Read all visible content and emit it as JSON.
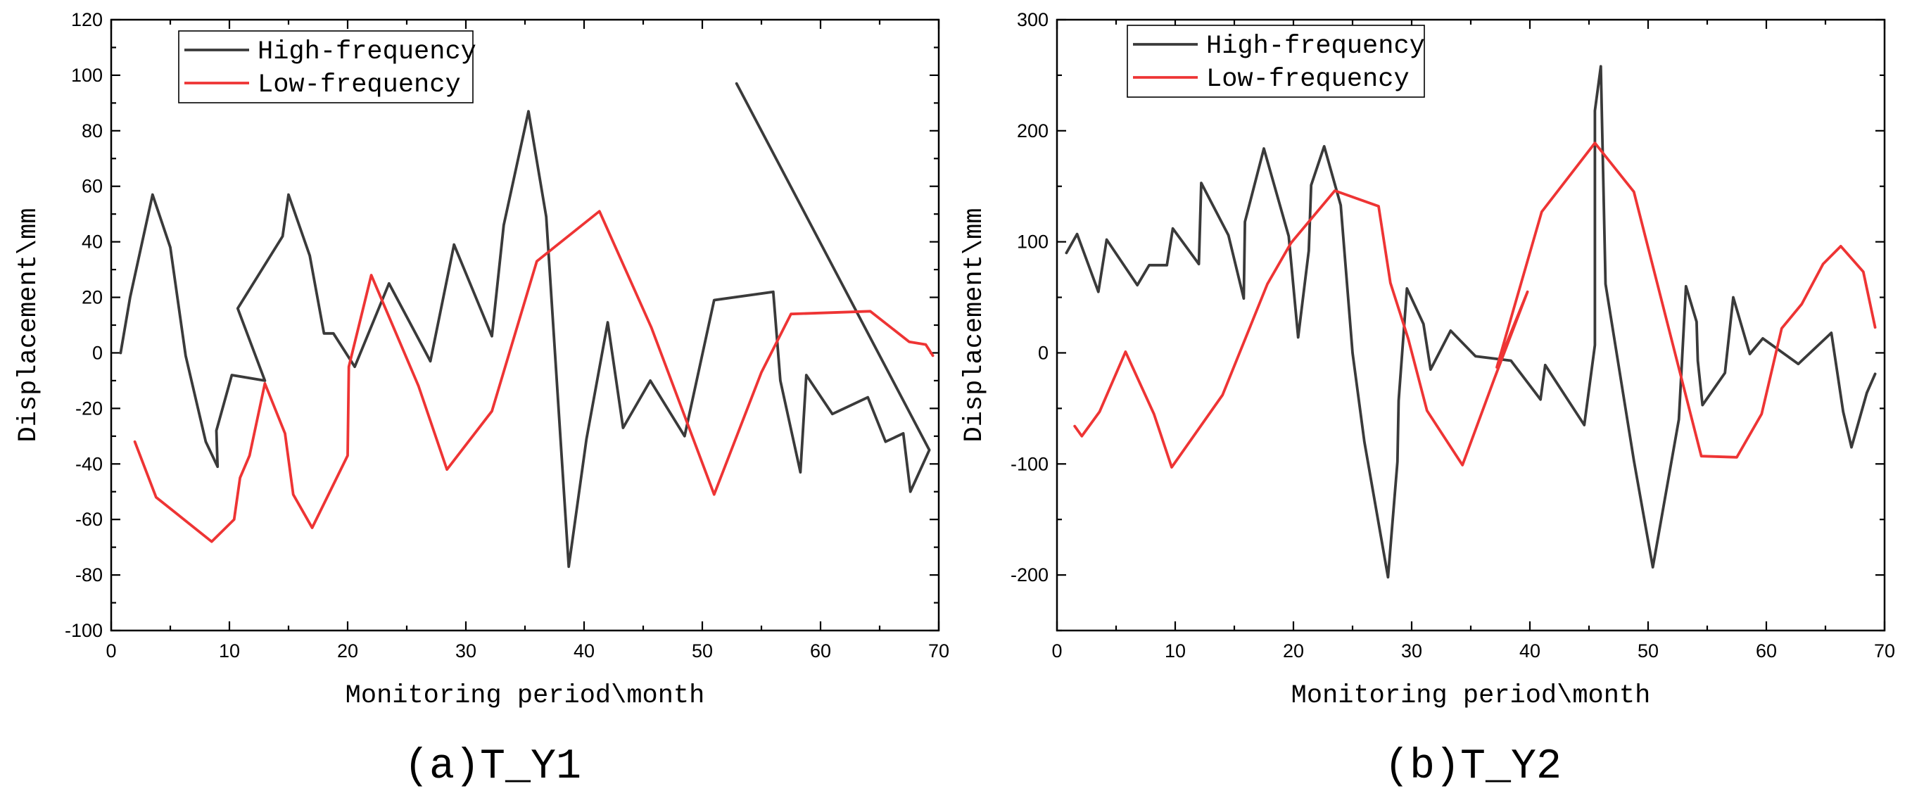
{
  "chart_data": [
    {
      "type": "line",
      "panel_id": "a",
      "caption": "(a)T_Y1",
      "xlabel": "Monitoring period\\month",
      "ylabel": "Displacement\\mm",
      "xlim": [
        0,
        70
      ],
      "ylim": [
        -100,
        120
      ],
      "x_ticks": [
        0,
        10,
        20,
        30,
        40,
        50,
        60,
        70
      ],
      "x_tick_labels": [
        "0",
        "10",
        "20",
        "30",
        "40",
        "50",
        "60",
        "70"
      ],
      "y_ticks": [
        -100,
        -80,
        -60,
        -40,
        -20,
        0,
        20,
        40,
        60,
        80,
        100,
        120
      ],
      "y_tick_labels": [
        "-100",
        "-80",
        "-60",
        "-40",
        "-20",
        "0",
        "20",
        "40",
        "60",
        "80",
        "100",
        "120"
      ],
      "legend_position": "top-left",
      "series": [
        {
          "name": "High-frequency",
          "color": "#3a3a3a",
          "points": [
            [
              0.8,
              0
            ],
            [
              1.6,
              20
            ],
            [
              3.5,
              57
            ],
            [
              5,
              38
            ],
            [
              6.3,
              -1
            ],
            [
              8,
              -32
            ],
            [
              9,
              -41
            ],
            [
              8.9,
              -28
            ],
            [
              10.2,
              -8
            ],
            [
              13,
              -10
            ],
            [
              10.7,
              16
            ],
            [
              14.5,
              42
            ],
            [
              15,
              57
            ],
            [
              16.8,
              35
            ],
            [
              18,
              7
            ],
            [
              18.8,
              7
            ],
            [
              20.6,
              -5
            ],
            [
              23.5,
              25
            ],
            [
              27,
              -3
            ],
            [
              29,
              39
            ],
            [
              32.2,
              6
            ],
            [
              33.2,
              46
            ],
            [
              35.3,
              87
            ],
            [
              36.8,
              49
            ],
            [
              38.7,
              -77
            ],
            [
              40.2,
              -31
            ],
            [
              42,
              11
            ],
            [
              43.3,
              -27
            ],
            [
              45.6,
              -10
            ],
            [
              48.5,
              -30
            ],
            [
              51,
              19
            ],
            [
              56,
              22
            ],
            [
              56.6,
              -10
            ],
            [
              58.3,
              -43
            ],
            [
              58.8,
              -8
            ],
            [
              61,
              -22
            ],
            [
              64,
              -16
            ],
            [
              65.5,
              -32
            ],
            [
              67,
              -29
            ],
            [
              67.6,
              -50
            ],
            [
              69.2,
              -35
            ],
            [
              52.9,
              97
            ]
          ]
        },
        {
          "name": "Low-frequency",
          "color": "#ee3434",
          "points": [
            [
              2,
              -32
            ],
            [
              3.8,
              -52
            ],
            [
              8.5,
              -68
            ],
            [
              10.4,
              -60
            ],
            [
              10.9,
              -45
            ],
            [
              11.7,
              -37
            ],
            [
              13,
              -11
            ],
            [
              14.7,
              -29
            ],
            [
              15.4,
              -51
            ],
            [
              17,
              -63
            ],
            [
              20,
              -37
            ],
            [
              20.1,
              -5
            ],
            [
              22,
              28
            ],
            [
              26,
              -12
            ],
            [
              28.4,
              -42
            ],
            [
              32.2,
              -21
            ],
            [
              36,
              33
            ],
            [
              41.3,
              51
            ],
            [
              45.7,
              9
            ],
            [
              51,
              -51
            ],
            [
              55,
              -7
            ],
            [
              57.5,
              14
            ],
            [
              64.2,
              15
            ],
            [
              67.5,
              4
            ],
            [
              68.9,
              3
            ],
            [
              69.5,
              -1
            ]
          ]
        }
      ]
    },
    {
      "type": "line",
      "panel_id": "b",
      "caption": "(b)T_Y2",
      "xlabel": "Monitoring period\\month",
      "ylabel": "Displacement\\mm",
      "xlim": [
        0,
        70
      ],
      "ylim": [
        -250,
        300
      ],
      "x_ticks": [
        0,
        10,
        20,
        30,
        40,
        50,
        60,
        70
      ],
      "x_tick_labels": [
        "0",
        "10",
        "20",
        "30",
        "40",
        "50",
        "60",
        "70"
      ],
      "y_ticks": [
        -200,
        -100,
        0,
        100,
        200,
        300
      ],
      "y_tick_labels": [
        "-200",
        "-100",
        "0",
        "100",
        "200",
        "300"
      ],
      "y_minor_ticks": [
        -250,
        -150,
        -50,
        50,
        150,
        250
      ],
      "legend_position": "top-left",
      "series": [
        {
          "name": "High-frequency",
          "color": "#3a3a3a",
          "points": [
            [
              0.8,
              90
            ],
            [
              1.7,
              107
            ],
            [
              3.5,
              55
            ],
            [
              4.2,
              102
            ],
            [
              6.8,
              61
            ],
            [
              7.8,
              79
            ],
            [
              9.3,
              79
            ],
            [
              9.8,
              112
            ],
            [
              12,
              80
            ],
            [
              12.2,
              153
            ],
            [
              14.5,
              106
            ],
            [
              15.8,
              49
            ],
            [
              15.9,
              118
            ],
            [
              17.5,
              184
            ],
            [
              19.6,
              105
            ],
            [
              20.4,
              14
            ],
            [
              21.3,
              92
            ],
            [
              21.5,
              151
            ],
            [
              22.6,
              186
            ],
            [
              24,
              133
            ],
            [
              25,
              0
            ],
            [
              26,
              -80
            ],
            [
              28,
              -202
            ],
            [
              28.8,
              -98
            ],
            [
              28.9,
              -43
            ],
            [
              29.6,
              58
            ],
            [
              31,
              26
            ],
            [
              31.6,
              -15
            ],
            [
              33.3,
              20
            ],
            [
              35.4,
              -3
            ],
            [
              38.4,
              -7
            ],
            [
              40.9,
              -42
            ],
            [
              41.3,
              -11
            ],
            [
              44.6,
              -65
            ],
            [
              45.5,
              7
            ],
            [
              45.5,
              218
            ],
            [
              46,
              258
            ],
            [
              46.4,
              62
            ],
            [
              48.8,
              -97
            ],
            [
              50.4,
              -193
            ],
            [
              52.6,
              -60
            ],
            [
              53.2,
              60
            ],
            [
              54.1,
              28
            ],
            [
              54.2,
              -7
            ],
            [
              54.6,
              -47
            ],
            [
              56.5,
              -18
            ],
            [
              57.2,
              50
            ],
            [
              58.6,
              -1
            ],
            [
              59.7,
              13
            ],
            [
              62.7,
              -10
            ],
            [
              65.5,
              18
            ],
            [
              66.5,
              -53
            ],
            [
              67.2,
              -85
            ],
            [
              68.5,
              -36
            ],
            [
              69.2,
              -19
            ]
          ]
        },
        {
          "name": "Low-frequency",
          "color": "#ee3434",
          "points": [
            [
              1.5,
              -66
            ],
            [
              2.1,
              -75
            ],
            [
              3.6,
              -53
            ],
            [
              5.8,
              1
            ],
            [
              8.2,
              -55
            ],
            [
              9.7,
              -103
            ],
            [
              14,
              -38
            ],
            [
              17.8,
              62
            ],
            [
              19.8,
              99
            ],
            [
              23.5,
              146
            ],
            [
              27.2,
              132
            ],
            [
              28.2,
              63
            ],
            [
              29.7,
              13
            ],
            [
              31.3,
              -52
            ],
            [
              34.3,
              -101
            ],
            [
              37,
              -23
            ],
            [
              39.8,
              55
            ],
            [
              37.2,
              -13
            ],
            [
              41,
              127
            ],
            [
              45.5,
              189
            ],
            [
              48.8,
              145
            ],
            [
              54.5,
              -93
            ],
            [
              57.5,
              -94
            ],
            [
              59.6,
              -55
            ],
            [
              61.3,
              22
            ],
            [
              63,
              44
            ],
            [
              64.8,
              80
            ],
            [
              66.3,
              96
            ],
            [
              68.2,
              73
            ],
            [
              69.2,
              23
            ]
          ]
        }
      ]
    }
  ]
}
